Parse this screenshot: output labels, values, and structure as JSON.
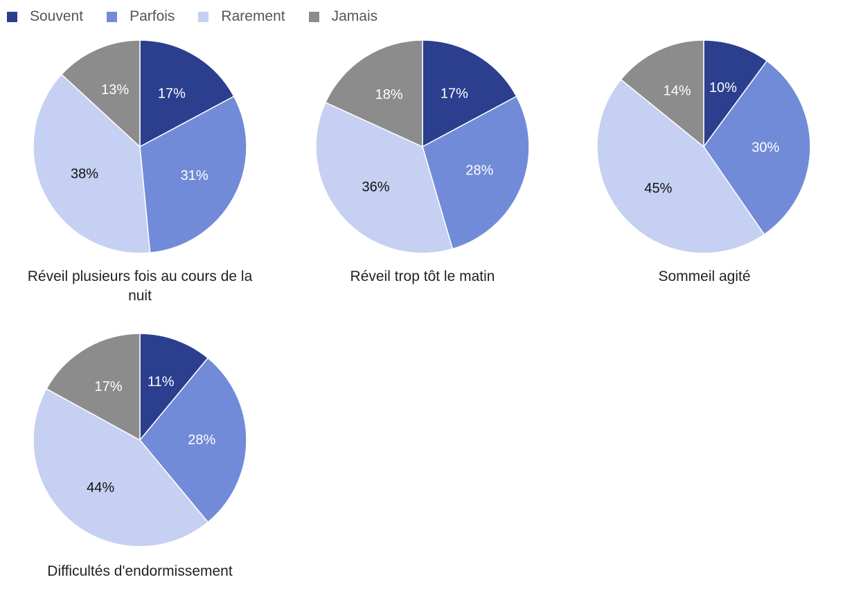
{
  "legend": [
    {
      "label": "Souvent",
      "color": "#2b3f8e"
    },
    {
      "label": "Parfois",
      "color": "#728bd8"
    },
    {
      "label": "Rarement",
      "color": "#c5d0f2"
    },
    {
      "label": "Jamais",
      "color": "#8c8c8c"
    }
  ],
  "chart_data": [
    {
      "type": "pie",
      "title": "Réveil plusieurs fois au cours de la nuit",
      "categories": [
        "Souvent",
        "Parfois",
        "Rarement",
        "Jamais"
      ],
      "values": [
        17,
        31,
        38,
        13
      ],
      "labels": [
        "17%",
        "31%",
        "38%",
        "13%"
      ]
    },
    {
      "type": "pie",
      "title": "Réveil trop tôt le matin",
      "categories": [
        "Souvent",
        "Parfois",
        "Rarement",
        "Jamais"
      ],
      "values": [
        17,
        28,
        36,
        18
      ],
      "labels": [
        "17%",
        "28%",
        "36%",
        "18%"
      ]
    },
    {
      "type": "pie",
      "title": "Sommeil agité",
      "categories": [
        "Souvent",
        "Parfois",
        "Rarement",
        "Jamais"
      ],
      "values": [
        10,
        30,
        45,
        14
      ],
      "labels": [
        "10%",
        "30%",
        "45%",
        "14%"
      ]
    },
    {
      "type": "pie",
      "title": "Difficultés d'endormissement",
      "categories": [
        "Souvent",
        "Parfois",
        "Rarement",
        "Jamais"
      ],
      "values": [
        11,
        28,
        44,
        17
      ],
      "labels": [
        "11%",
        "28%",
        "44%",
        "17%"
      ]
    }
  ]
}
